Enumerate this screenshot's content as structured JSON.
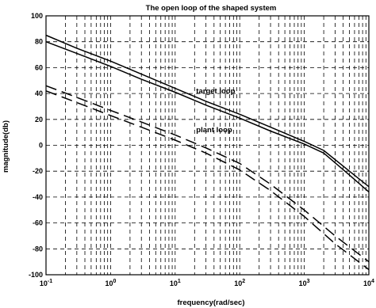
{
  "chart_data": {
    "type": "line",
    "title": "The open loop of the shaped system",
    "xlabel": "frequency(rad/sec)",
    "ylabel": "magnitude(db)",
    "x_scale": "log",
    "xlim": [
      0.1,
      10000
    ],
    "ylim": [
      -100,
      100
    ],
    "grid": true,
    "x_ticks": [
      {
        "value": 0.1,
        "base": "10",
        "exp": "-1"
      },
      {
        "value": 1,
        "base": "10",
        "exp": "0"
      },
      {
        "value": 10,
        "base": "10",
        "exp": "1"
      },
      {
        "value": 100,
        "base": "10",
        "exp": "2"
      },
      {
        "value": 1000,
        "base": "10",
        "exp": "3"
      },
      {
        "value": 10000,
        "base": "10",
        "exp": "4"
      }
    ],
    "y_ticks": [
      100,
      80,
      60,
      40,
      20,
      0,
      -20,
      -40,
      -60,
      -80,
      -100
    ],
    "series": [
      {
        "name": "target loop",
        "style": "solid",
        "color": "#000000",
        "x": [
          0.1,
          0.3,
          1,
          3,
          10,
          30,
          100,
          300,
          1000,
          2000,
          5000,
          10000
        ],
        "y": [
          85,
          75,
          65,
          55,
          44,
          34,
          24,
          14,
          3,
          -4,
          -20,
          -32
        ]
      },
      {
        "name": "",
        "style": "solid",
        "color": "#000000",
        "x": [
          0.1,
          0.3,
          1,
          3,
          10,
          30,
          100,
          300,
          1000,
          2000,
          5000,
          10000
        ],
        "y": [
          80,
          71,
          61,
          51,
          41,
          31,
          21,
          11,
          1,
          -6,
          -23,
          -36
        ]
      },
      {
        "name": "plant loop",
        "style": "dashed",
        "color": "#000000",
        "x": [
          0.1,
          0.3,
          1,
          3,
          10,
          30,
          100,
          300,
          1000,
          3000,
          10000
        ],
        "y": [
          46,
          37,
          27,
          18,
          8,
          -2,
          -14,
          -30,
          -50,
          -70,
          -90
        ]
      },
      {
        "name": "",
        "style": "dashed",
        "color": "#000000",
        "x": [
          0.1,
          0.3,
          1,
          3,
          10,
          30,
          100,
          300,
          1000,
          3000,
          10000
        ],
        "y": [
          42,
          33,
          23,
          14,
          4,
          -6,
          -19,
          -35,
          -55,
          -76,
          -96
        ]
      }
    ],
    "annotations": [
      {
        "text": "target loop",
        "x": 20,
        "y": 40
      },
      {
        "text": "plant loop",
        "x": 20,
        "y": 10
      }
    ]
  }
}
